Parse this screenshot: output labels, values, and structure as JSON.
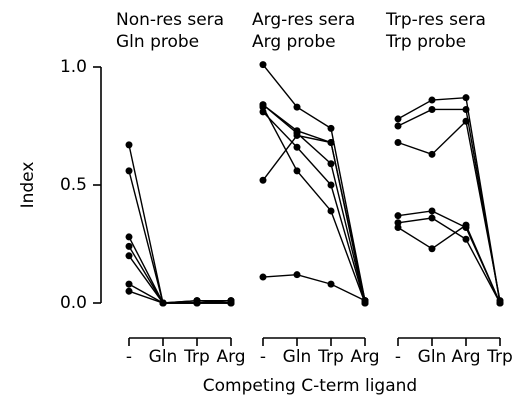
{
  "chart_data": [
    {
      "type": "line",
      "title": "Non-res sera",
      "subtitle": "Gln probe",
      "ylabel": "Index",
      "ylim": [
        0,
        1
      ],
      "yticks": [
        {
          "value": 0,
          "label": "0.0"
        },
        0.5,
        {
          "value": 1,
          "label": "1.0"
        }
      ],
      "categories": [
        "-",
        "Gln",
        "Trp",
        "Arg"
      ],
      "color": "#000000",
      "series": [
        {
          "values": [
            0.67,
            0,
            0,
            0
          ]
        },
        {
          "values": [
            0.56,
            0,
            0.01,
            0.01
          ]
        },
        {
          "values": [
            0.28,
            0,
            0,
            0
          ]
        },
        {
          "values": [
            0.24,
            0,
            0.01,
            0
          ]
        },
        {
          "values": [
            0.2,
            0,
            0,
            0.01
          ]
        },
        {
          "values": [
            0.08,
            0,
            0,
            0
          ]
        },
        {
          "values": [
            0.05,
            0,
            0,
            0
          ]
        }
      ]
    },
    {
      "type": "line",
      "title": "Arg-res sera",
      "subtitle": "Arg probe",
      "xlabel": "Competing C-term ligand",
      "ylim": [
        0,
        1
      ],
      "categories": [
        "-",
        "Gln",
        "Trp",
        "Arg"
      ],
      "color": "#000000",
      "series": [
        {
          "values": [
            1.01,
            0.83,
            0.74,
            0.01
          ]
        },
        {
          "values": [
            0.84,
            0.73,
            0.68,
            0
          ]
        },
        {
          "values": [
            0.84,
            0.72,
            0.59,
            0
          ]
        },
        {
          "values": [
            0.81,
            0.66,
            0.5,
            0
          ]
        },
        {
          "values": [
            0.52,
            0.71,
            0.68,
            0.01
          ]
        },
        {
          "values": [
            0.83,
            0.56,
            0.39,
            0
          ]
        },
        {
          "values": [
            0.11,
            0.12,
            0.08,
            0.01
          ]
        }
      ]
    },
    {
      "type": "line",
      "title": "Trp-res sera",
      "subtitle": "Trp probe",
      "ylim": [
        0,
        1
      ],
      "categories": [
        "-",
        "Gln",
        "Arg",
        "Trp"
      ],
      "color": "#000000",
      "series": [
        {
          "values": [
            0.78,
            0.86,
            0.87,
            0
          ]
        },
        {
          "values": [
            0.75,
            0.82,
            0.82,
            0
          ]
        },
        {
          "values": [
            0.68,
            0.63,
            0.77,
            0.01
          ]
        },
        {
          "values": [
            0.37,
            0.39,
            0.32,
            0
          ]
        },
        {
          "values": [
            0.34,
            0.36,
            0.27,
            0
          ]
        },
        {
          "values": [
            0.32,
            0.23,
            0.33,
            0
          ]
        }
      ]
    }
  ]
}
